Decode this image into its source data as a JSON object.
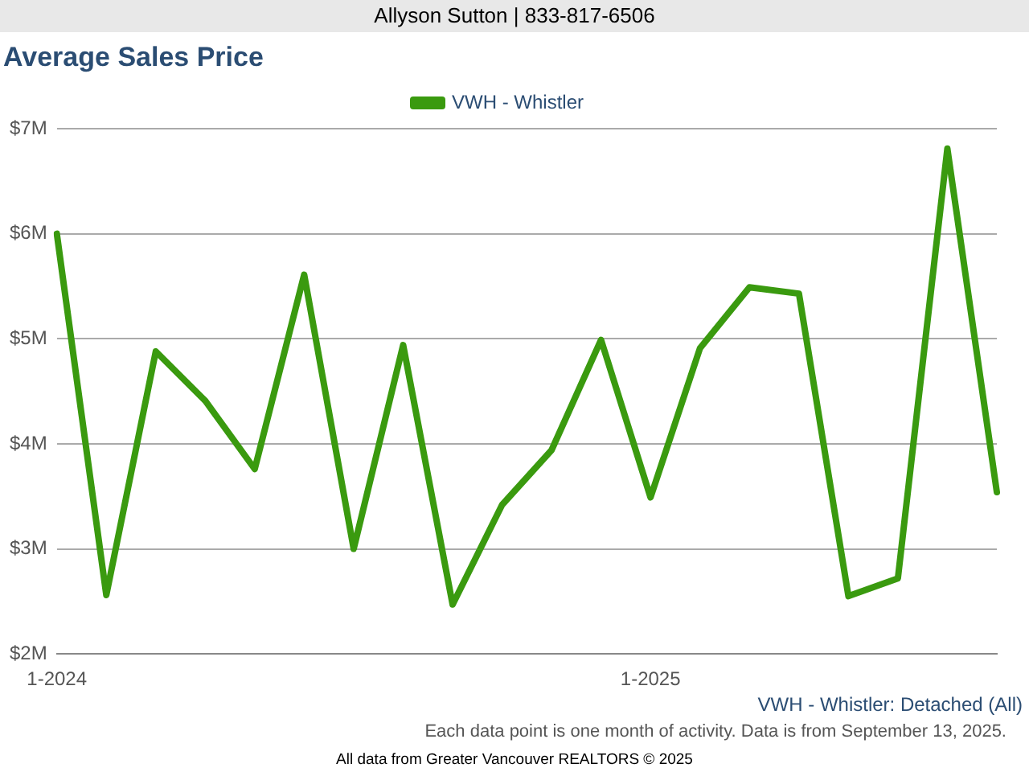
{
  "chart_data": {
    "type": "line",
    "title": "Average Sales Price",
    "categories": [
      "1-2024",
      null,
      null,
      null,
      null,
      null,
      null,
      null,
      null,
      null,
      null,
      null,
      "1-2025",
      null,
      null,
      null,
      null,
      null,
      null,
      null
    ],
    "series": [
      {
        "name": "VWH - Whistler",
        "color": "#3a9a0f",
        "values": [
          6.0,
          2.56,
          4.88,
          4.41,
          3.76,
          5.61,
          3.0,
          4.94,
          2.47,
          3.42,
          3.94,
          4.99,
          3.49,
          4.91,
          5.49,
          5.43,
          2.55,
          2.72,
          6.81,
          3.54
        ]
      }
    ],
    "ylim": [
      2,
      7
    ],
    "yticks": [
      {
        "value": 2,
        "label": "$2M"
      },
      {
        "value": 3,
        "label": "$3M"
      },
      {
        "value": 4,
        "label": "$4M"
      },
      {
        "value": 5,
        "label": "$5M"
      },
      {
        "value": 6,
        "label": "$6M"
      },
      {
        "value": 7,
        "label": "$7M"
      }
    ],
    "grid": "y",
    "legend": "top",
    "marker": "none",
    "line_style": "solid",
    "annotations": [
      "Allyson Sutton | 833-817-6506",
      "VWH - Whistler: Detached (All)",
      "Each data point is one month of activity. Data is from September 13, 2025.",
      "All data from Greater Vancouver REALTORS © 2025"
    ]
  }
}
